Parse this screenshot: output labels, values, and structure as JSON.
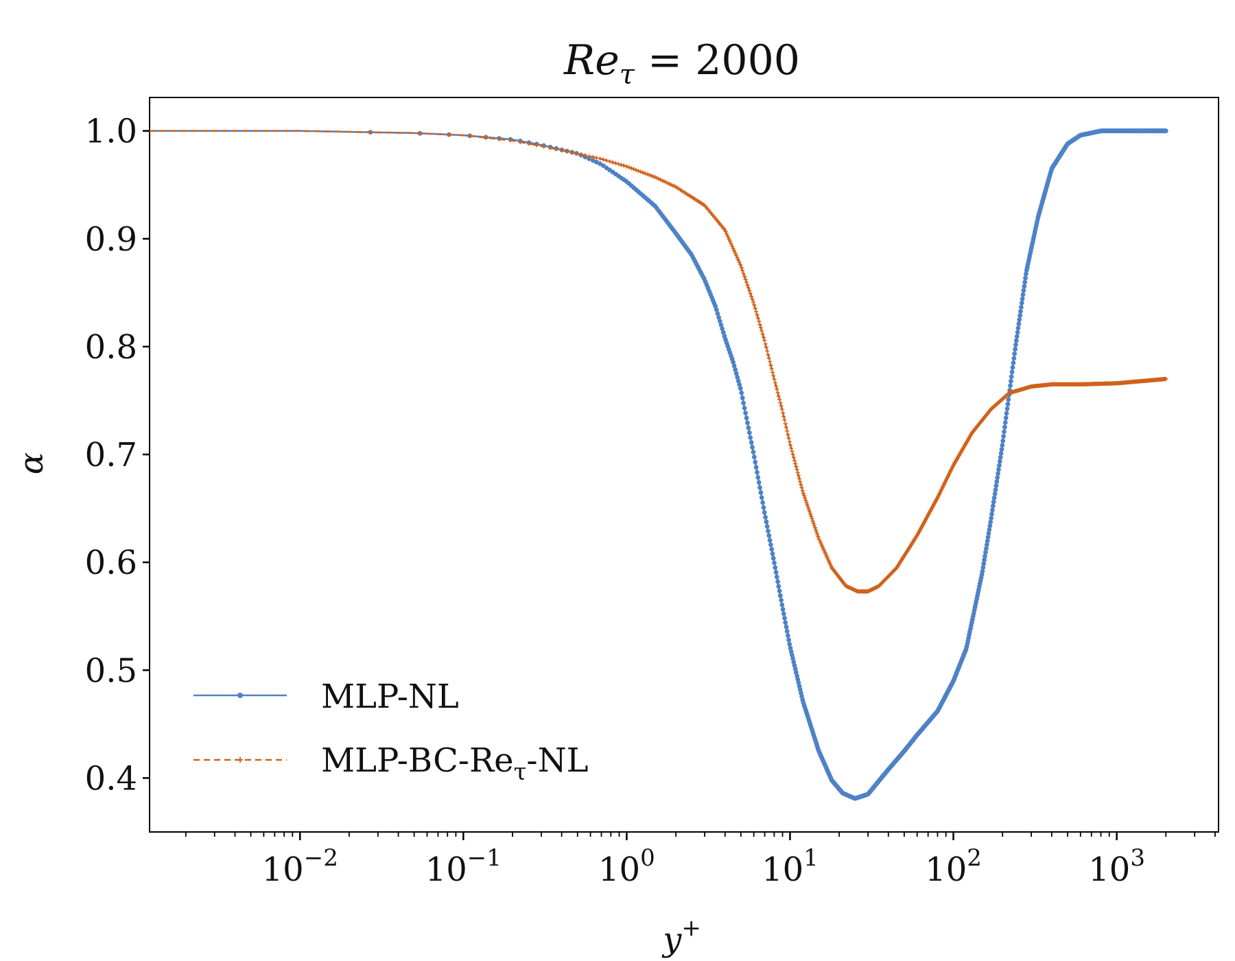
{
  "chart_data": {
    "type": "line",
    "title": "Re_τ = 2000",
    "title_main": "Re",
    "title_sub": "τ",
    "title_rest": " = 2000",
    "xlabel": "y",
    "xlabel_sup": "+",
    "ylabel": "α",
    "xscale": "log",
    "xlim": [
      0.0012,
      4200
    ],
    "ylim": [
      0.35,
      1.031
    ],
    "yticks": [
      0.4,
      0.5,
      0.6,
      0.7,
      0.8,
      0.9,
      1.0
    ],
    "ytick_labels": [
      "0.4",
      "0.5",
      "0.6",
      "0.7",
      "0.8",
      "0.9",
      "1.0"
    ],
    "xticks": [
      0.01,
      0.1,
      1,
      10,
      100,
      1000
    ],
    "xtick_labels": [
      {
        "base": "10",
        "exp": "−2"
      },
      {
        "base": "10",
        "exp": "−1"
      },
      {
        "base": "10",
        "exp": "0"
      },
      {
        "base": "10",
        "exp": "1"
      },
      {
        "base": "10",
        "exp": "2"
      },
      {
        "base": "10",
        "exp": "3"
      }
    ],
    "legend_position": "lower-left",
    "series": [
      {
        "name": "MLP-NL",
        "color": "#4e82c6",
        "style": "solid-dots",
        "points": [
          [
            0.0012,
            1.0
          ],
          [
            0.01,
            1.0
          ],
          [
            0.05,
            0.998
          ],
          [
            0.1,
            0.996
          ],
          [
            0.2,
            0.992
          ],
          [
            0.3,
            0.987
          ],
          [
            0.5,
            0.979
          ],
          [
            0.7,
            0.969
          ],
          [
            1.0,
            0.953
          ],
          [
            1.5,
            0.93
          ],
          [
            2.0,
            0.905
          ],
          [
            2.5,
            0.885
          ],
          [
            3.0,
            0.862
          ],
          [
            3.5,
            0.837
          ],
          [
            4.0,
            0.808
          ],
          [
            4.5,
            0.785
          ],
          [
            5.0,
            0.76
          ],
          [
            6.0,
            0.7
          ],
          [
            7.0,
            0.645
          ],
          [
            8.0,
            0.6
          ],
          [
            9.0,
            0.558
          ],
          [
            10.0,
            0.522
          ],
          [
            12.0,
            0.471
          ],
          [
            15.0,
            0.425
          ],
          [
            18.0,
            0.398
          ],
          [
            21.0,
            0.386
          ],
          [
            25.0,
            0.381
          ],
          [
            30.0,
            0.385
          ],
          [
            40.0,
            0.408
          ],
          [
            50.0,
            0.425
          ],
          [
            60.0,
            0.44
          ],
          [
            80.0,
            0.462
          ],
          [
            100.0,
            0.49
          ],
          [
            120.0,
            0.52
          ],
          [
            150.0,
            0.59
          ],
          [
            170.0,
            0.64
          ],
          [
            200.0,
            0.71
          ],
          [
            240.0,
            0.8
          ],
          [
            280.0,
            0.87
          ],
          [
            330.0,
            0.92
          ],
          [
            400.0,
            0.965
          ],
          [
            500.0,
            0.988
          ],
          [
            600.0,
            0.996
          ],
          [
            800.0,
            1.0
          ],
          [
            1000.0,
            1.0
          ],
          [
            2000.0,
            1.0
          ]
        ]
      },
      {
        "name": "MLP-BC-Re_τ-NL",
        "name_main": "MLP-BC-Re",
        "name_sub": "τ",
        "name_rest": "-NL",
        "color": "#d0621a",
        "style": "dashed-plus",
        "points": [
          [
            0.0012,
            1.0
          ],
          [
            0.01,
            1.0
          ],
          [
            0.05,
            0.998
          ],
          [
            0.1,
            0.996
          ],
          [
            0.2,
            0.991
          ],
          [
            0.3,
            0.986
          ],
          [
            0.5,
            0.979
          ],
          [
            0.7,
            0.974
          ],
          [
            1.0,
            0.967
          ],
          [
            1.5,
            0.957
          ],
          [
            2.0,
            0.948
          ],
          [
            3.0,
            0.931
          ],
          [
            4.0,
            0.908
          ],
          [
            5.0,
            0.875
          ],
          [
            6.0,
            0.84
          ],
          [
            7.0,
            0.805
          ],
          [
            8.0,
            0.77
          ],
          [
            9.0,
            0.74
          ],
          [
            10.0,
            0.71
          ],
          [
            12.0,
            0.665
          ],
          [
            15.0,
            0.622
          ],
          [
            18.0,
            0.595
          ],
          [
            22.0,
            0.578
          ],
          [
            26.0,
            0.573
          ],
          [
            30.0,
            0.573
          ],
          [
            35.0,
            0.578
          ],
          [
            45.0,
            0.595
          ],
          [
            60.0,
            0.625
          ],
          [
            80.0,
            0.66
          ],
          [
            100.0,
            0.69
          ],
          [
            130.0,
            0.72
          ],
          [
            170.0,
            0.742
          ],
          [
            220.0,
            0.757
          ],
          [
            300.0,
            0.763
          ],
          [
            400.0,
            0.765
          ],
          [
            600.0,
            0.765
          ],
          [
            1000.0,
            0.766
          ],
          [
            2000.0,
            0.77
          ]
        ]
      }
    ]
  }
}
